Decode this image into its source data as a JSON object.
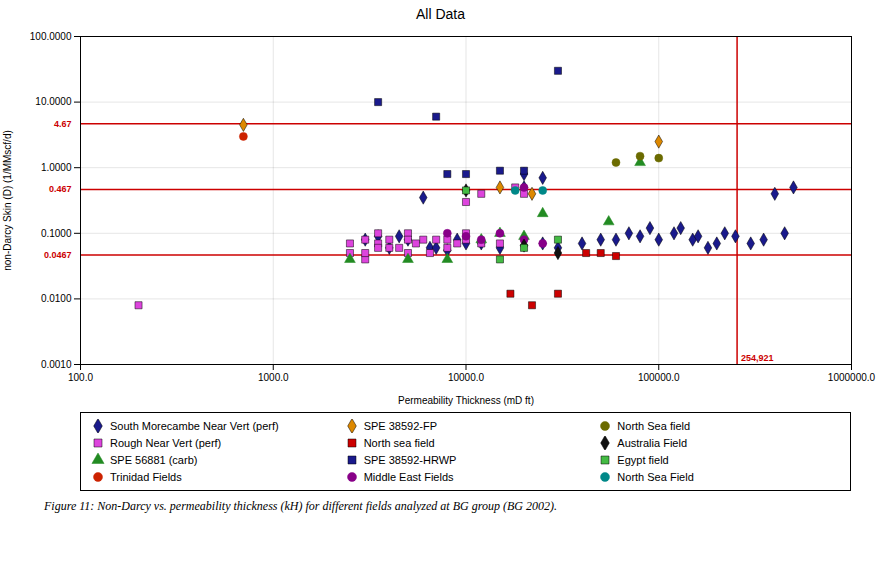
{
  "chart_data": {
    "type": "scatter",
    "title": "All Data",
    "xlabel": "Permeability Thickness (mD ft)",
    "ylabel": "non-Darcy Skin (D) (1/MMscf/d)",
    "log": true,
    "grid": true,
    "legend": "bottom",
    "xlim": [
      100.0,
      1000000.0
    ],
    "ylim": [
      0.001,
      100.0
    ],
    "xticks": [
      {
        "value": 100,
        "label": "100.0"
      },
      {
        "value": 1000,
        "label": "1000.0"
      },
      {
        "value": 10000,
        "label": "10000.0"
      },
      {
        "value": 100000,
        "label": "100000.0"
      },
      {
        "value": 1000000,
        "label": "1000000.0"
      }
    ],
    "yticks": [
      {
        "value": 0.001,
        "label": "0.0010"
      },
      {
        "value": 0.01,
        "label": "0.0100"
      },
      {
        "value": 0.1,
        "label": "0.1000"
      },
      {
        "value": 1,
        "label": "1.0000"
      },
      {
        "value": 10,
        "label": "10.0000"
      },
      {
        "value": 100,
        "label": "100.0000"
      }
    ],
    "annotations": [
      {
        "text": "4.67",
        "y": 4.67,
        "color": "#cc0000"
      },
      {
        "text": "0.467",
        "y": 0.467,
        "color": "#cc0000"
      },
      {
        "text": "0.0467",
        "y": 0.0467,
        "color": "#cc0000"
      },
      {
        "text": "254,921",
        "x": 254921,
        "color": "#cc0000"
      }
    ],
    "series": [
      {
        "name": "South Morecambe Near Vert (perf)",
        "color": "#1a1a8c",
        "marker": "diamond",
        "x": [
          3000,
          3500,
          4000,
          4500,
          5000,
          6000,
          6500,
          7000,
          8000,
          9000,
          10000,
          12000,
          15000,
          20000,
          20000,
          25000,
          25000,
          30000,
          40000,
          50000,
          60000,
          70000,
          80000,
          90000,
          100000,
          120000,
          130000,
          150000,
          160000,
          180000,
          200000,
          220000,
          250000,
          300000,
          350000,
          400000,
          450000,
          500000
        ],
        "values": [
          0.08,
          0.09,
          0.06,
          0.09,
          0.08,
          0.35,
          0.06,
          0.06,
          0.055,
          0.08,
          0.07,
          0.07,
          0.06,
          0.5,
          0.8,
          0.7,
          0.07,
          0.06,
          0.07,
          0.08,
          0.08,
          0.1,
          0.09,
          0.12,
          0.08,
          0.1,
          0.12,
          0.08,
          0.09,
          0.06,
          0.07,
          0.1,
          0.09,
          0.07,
          0.08,
          0.4,
          0.1,
          0.5
        ]
      },
      {
        "name": "Rough Near Vert (perf)",
        "color": "#dd44dd",
        "marker": "square",
        "x": [
          200,
          2500,
          2500,
          3000,
          3000,
          3000,
          3500,
          3500,
          3500,
          4000,
          4000,
          4500,
          5000,
          5000,
          5000,
          5500,
          6000,
          6500,
          7000,
          8000,
          8000,
          9000,
          10000,
          10000,
          10000,
          12000,
          12000,
          15000,
          18000,
          20000
        ],
        "values": [
          0.008,
          0.07,
          0.05,
          0.08,
          0.04,
          0.05,
          0.1,
          0.07,
          0.06,
          0.08,
          0.06,
          0.06,
          0.1,
          0.08,
          0.05,
          0.07,
          0.08,
          0.05,
          0.08,
          0.08,
          0.06,
          0.07,
          0.1,
          0.08,
          0.3,
          0.4,
          0.07,
          0.07,
          0.5,
          0.4
        ]
      },
      {
        "name": "SPE 56881 (carb)",
        "color": "#228B22",
        "marker": "triangle",
        "x": [
          2500,
          5000,
          8000,
          12000,
          15000,
          20000,
          25000,
          55000,
          80000
        ],
        "values": [
          0.04,
          0.04,
          0.04,
          0.08,
          0.1,
          0.09,
          0.2,
          0.15,
          1.2
        ]
      },
      {
        "name": "Trinidad Fields",
        "color": "#cc2200",
        "marker": "circle",
        "x": [
          700
        ],
        "values": [
          3.0
        ]
      },
      {
        "name": "SPE 38592-FP",
        "color": "#dd8800",
        "marker": "diamond",
        "x": [
          700,
          15000,
          22000,
          100000
        ],
        "values": [
          4.5,
          0.5,
          0.4,
          2.5
        ]
      },
      {
        "name": "North sea field",
        "color": "#cc0000",
        "marker": "square",
        "x": [
          17000,
          22000,
          30000,
          42000,
          50000,
          60000
        ],
        "values": [
          0.012,
          0.008,
          0.012,
          0.05,
          0.05,
          0.045
        ]
      },
      {
        "name": "SPE 38592-HRWP",
        "color": "#1a1a8c",
        "marker": "square",
        "x": [
          3500,
          7000,
          8000,
          10000,
          15000,
          20000,
          30000
        ],
        "values": [
          10.0,
          6.0,
          0.8,
          0.8,
          0.9,
          0.9,
          30.0
        ]
      },
      {
        "name": "Middle East Fields",
        "color": "#880088",
        "marker": "circle",
        "x": [
          8000,
          10000,
          12000,
          15000,
          20000,
          20000,
          25000
        ],
        "values": [
          0.1,
          0.09,
          0.08,
          0.1,
          0.08,
          0.5,
          0.07
        ]
      },
      {
        "name": "North Sea field",
        "color": "#6b6b00",
        "marker": "circle",
        "x": [
          60000,
          80000,
          100000
        ],
        "values": [
          1.2,
          1.5,
          1.4
        ]
      },
      {
        "name": "Australia Field",
        "color": "#111111",
        "marker": "diamond",
        "x": [
          10000,
          20000,
          30000
        ],
        "values": [
          0.45,
          0.065,
          0.05
        ]
      },
      {
        "name": "Egypt field",
        "color": "#44bb44",
        "marker": "square",
        "x": [
          10000,
          15000,
          20000,
          30000
        ],
        "values": [
          0.45,
          0.04,
          0.06,
          0.08
        ]
      },
      {
        "name": "North Sea Field",
        "color": "#008888",
        "marker": "circle",
        "x": [
          18000,
          25000
        ],
        "values": [
          0.45,
          0.45
        ]
      }
    ],
    "caption": "Figure 11: Non-Darcy vs. permeability thickness (kH) for different fields analyzed at BG group (BG 2002)."
  }
}
